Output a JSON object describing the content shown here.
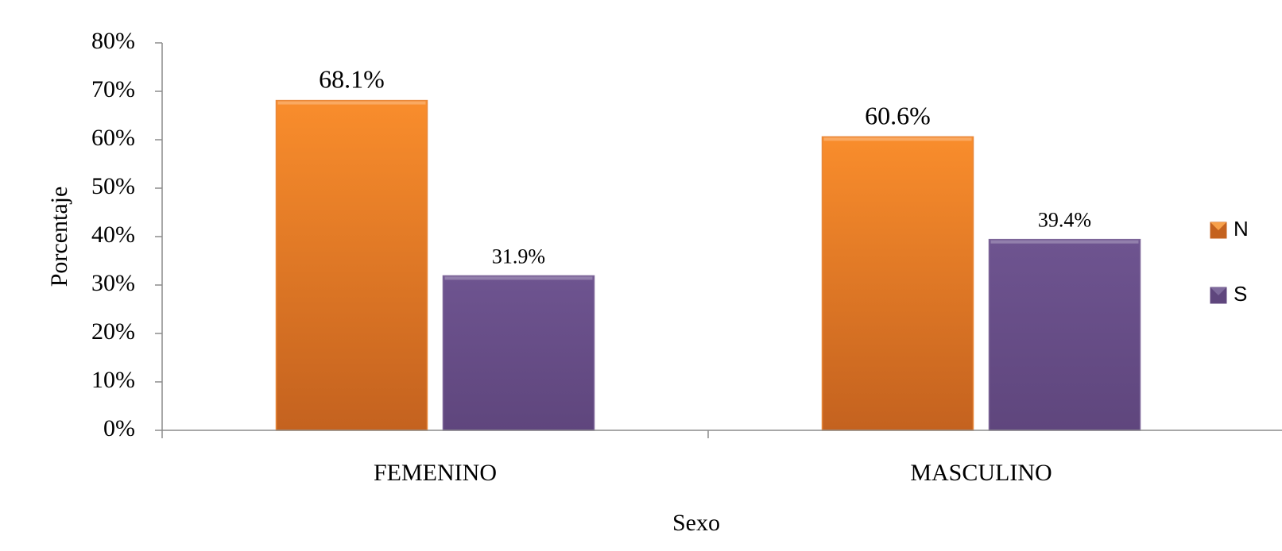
{
  "chart_data": {
    "type": "bar",
    "title": "",
    "xlabel": "Sexo",
    "ylabel": "Porcentaje",
    "categories": [
      "FEMENINO",
      "MASCULINO"
    ],
    "series": [
      {
        "name": "N",
        "values": [
          68.1,
          60.6
        ],
        "labels": [
          "68.1%",
          "60.6%"
        ],
        "color": "#F28A2E"
      },
      {
        "name": "S",
        "values": [
          31.9,
          39.4
        ],
        "labels": [
          "31.9%",
          "39.4%"
        ],
        "color": "#6B5087"
      }
    ],
    "ylim": [
      0,
      80
    ],
    "yticks": [
      "0%",
      "10%",
      "20%",
      "30%",
      "40%",
      "50%",
      "60%",
      "70%",
      "80%"
    ],
    "grid": false,
    "legend": "right"
  }
}
